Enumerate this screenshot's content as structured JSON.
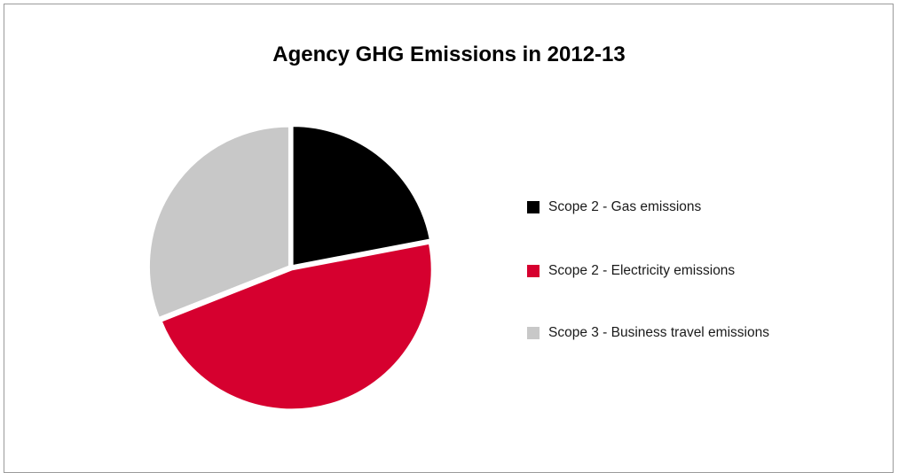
{
  "chart_data": {
    "type": "pie",
    "title": "Agency GHG Emissions in 2012-13",
    "categories": [
      "Scope 2 - Gas emissions",
      "Scope 2 - Electricity emissions",
      "Scope 3 - Business travel emissions"
    ],
    "values": [
      22,
      47,
      31
    ],
    "colors": [
      "#000000",
      "#d6002f",
      "#c8c8c8"
    ],
    "legend_position": "right"
  }
}
